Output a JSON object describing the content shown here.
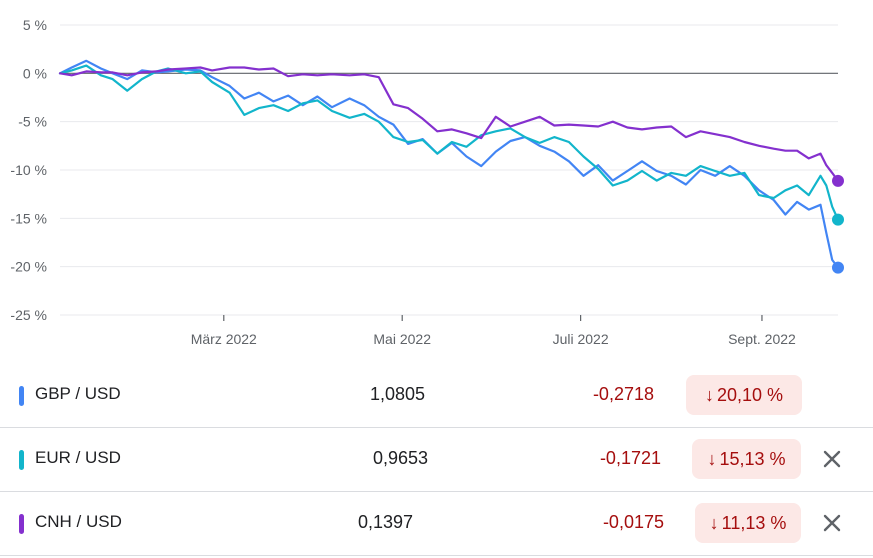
{
  "chart_data": {
    "type": "line",
    "ylim": [
      -25,
      5
    ],
    "y_ticks": [
      "5 %",
      "0 %",
      "-5 %",
      "-10 %",
      "-15 %",
      "-20 %",
      "-25 %"
    ],
    "y_tick_values": [
      5,
      0,
      -5,
      -10,
      -15,
      -20,
      -25
    ],
    "x_ticks": [
      "März 2022",
      "Mai 2022",
      "Juli 2022",
      "Sept. 2022"
    ],
    "x_tick_dates": [
      "2022-03-01",
      "2022-05-01",
      "2022-07-01",
      "2022-09-01"
    ],
    "x_range": [
      "2022-01-04",
      "2022-09-27"
    ],
    "grid": true,
    "legend": "none",
    "series": [
      {
        "name": "GBP / USD",
        "color": "#4285f4",
        "points": [
          [
            "2022-01-04",
            0.0
          ],
          [
            "2022-01-08",
            0.6
          ],
          [
            "2022-01-13",
            1.3
          ],
          [
            "2022-01-18",
            0.5
          ],
          [
            "2022-01-22",
            0.0
          ],
          [
            "2022-01-27",
            -0.6
          ],
          [
            "2022-02-01",
            0.3
          ],
          [
            "2022-02-06",
            0.1
          ],
          [
            "2022-02-10",
            0.2
          ],
          [
            "2022-02-16",
            0.4
          ],
          [
            "2022-02-21",
            0.3
          ],
          [
            "2022-02-25",
            -0.4
          ],
          [
            "2022-03-03",
            -1.3
          ],
          [
            "2022-03-08",
            -2.6
          ],
          [
            "2022-03-13",
            -2.0
          ],
          [
            "2022-03-18",
            -2.9
          ],
          [
            "2022-03-23",
            -2.3
          ],
          [
            "2022-03-28",
            -3.3
          ],
          [
            "2022-04-02",
            -2.4
          ],
          [
            "2022-04-07",
            -3.5
          ],
          [
            "2022-04-13",
            -2.6
          ],
          [
            "2022-04-18",
            -3.3
          ],
          [
            "2022-04-23",
            -4.5
          ],
          [
            "2022-04-28",
            -5.3
          ],
          [
            "2022-05-03",
            -7.3
          ],
          [
            "2022-05-08",
            -6.8
          ],
          [
            "2022-05-13",
            -8.3
          ],
          [
            "2022-05-18",
            -7.2
          ],
          [
            "2022-05-23",
            -8.6
          ],
          [
            "2022-05-28",
            -9.6
          ],
          [
            "2022-06-02",
            -8.1
          ],
          [
            "2022-06-07",
            -7.0
          ],
          [
            "2022-06-12",
            -6.6
          ],
          [
            "2022-06-17",
            -7.5
          ],
          [
            "2022-06-22",
            -8.1
          ],
          [
            "2022-06-27",
            -9.1
          ],
          [
            "2022-07-02",
            -10.6
          ],
          [
            "2022-07-07",
            -9.5
          ],
          [
            "2022-07-12",
            -11.1
          ],
          [
            "2022-07-17",
            -10.1
          ],
          [
            "2022-07-22",
            -9.1
          ],
          [
            "2022-07-27",
            -10.1
          ],
          [
            "2022-08-01",
            -10.6
          ],
          [
            "2022-08-06",
            -11.5
          ],
          [
            "2022-08-11",
            -10.0
          ],
          [
            "2022-08-16",
            -10.6
          ],
          [
            "2022-08-21",
            -9.6
          ],
          [
            "2022-08-26",
            -10.6
          ],
          [
            "2022-08-31",
            -12.1
          ],
          [
            "2022-09-05",
            -13.1
          ],
          [
            "2022-09-09",
            -14.6
          ],
          [
            "2022-09-13",
            -13.3
          ],
          [
            "2022-09-17",
            -14.1
          ],
          [
            "2022-09-21",
            -13.6
          ],
          [
            "2022-09-23",
            -16.5
          ],
          [
            "2022-09-25",
            -19.3
          ],
          [
            "2022-09-27",
            -20.1
          ]
        ]
      },
      {
        "name": "EUR / USD",
        "color": "#12b5cb",
        "points": [
          [
            "2022-01-04",
            0.0
          ],
          [
            "2022-01-08",
            0.3
          ],
          [
            "2022-01-13",
            0.8
          ],
          [
            "2022-01-18",
            -0.2
          ],
          [
            "2022-01-22",
            -0.6
          ],
          [
            "2022-01-27",
            -1.8
          ],
          [
            "2022-02-01",
            -0.6
          ],
          [
            "2022-02-06",
            0.2
          ],
          [
            "2022-02-10",
            0.5
          ],
          [
            "2022-02-16",
            0.0
          ],
          [
            "2022-02-21",
            0.2
          ],
          [
            "2022-02-25",
            -0.9
          ],
          [
            "2022-03-03",
            -2.0
          ],
          [
            "2022-03-08",
            -4.3
          ],
          [
            "2022-03-13",
            -3.6
          ],
          [
            "2022-03-18",
            -3.3
          ],
          [
            "2022-03-23",
            -3.9
          ],
          [
            "2022-03-28",
            -3.1
          ],
          [
            "2022-04-02",
            -2.8
          ],
          [
            "2022-04-07",
            -3.9
          ],
          [
            "2022-04-13",
            -4.6
          ],
          [
            "2022-04-18",
            -4.2
          ],
          [
            "2022-04-23",
            -5.0
          ],
          [
            "2022-04-28",
            -6.6
          ],
          [
            "2022-05-03",
            -7.1
          ],
          [
            "2022-05-08",
            -6.9
          ],
          [
            "2022-05-13",
            -8.3
          ],
          [
            "2022-05-18",
            -7.1
          ],
          [
            "2022-05-23",
            -7.6
          ],
          [
            "2022-05-28",
            -6.4
          ],
          [
            "2022-06-02",
            -6.0
          ],
          [
            "2022-06-07",
            -5.7
          ],
          [
            "2022-06-12",
            -6.6
          ],
          [
            "2022-06-17",
            -7.2
          ],
          [
            "2022-06-22",
            -6.6
          ],
          [
            "2022-06-27",
            -7.1
          ],
          [
            "2022-07-02",
            -8.6
          ],
          [
            "2022-07-07",
            -9.9
          ],
          [
            "2022-07-12",
            -11.6
          ],
          [
            "2022-07-17",
            -11.1
          ],
          [
            "2022-07-22",
            -10.1
          ],
          [
            "2022-07-27",
            -11.1
          ],
          [
            "2022-08-01",
            -10.3
          ],
          [
            "2022-08-06",
            -10.6
          ],
          [
            "2022-08-11",
            -9.6
          ],
          [
            "2022-08-16",
            -10.1
          ],
          [
            "2022-08-21",
            -10.6
          ],
          [
            "2022-08-26",
            -10.3
          ],
          [
            "2022-08-31",
            -12.6
          ],
          [
            "2022-09-05",
            -12.9
          ],
          [
            "2022-09-09",
            -12.1
          ],
          [
            "2022-09-13",
            -11.6
          ],
          [
            "2022-09-17",
            -12.6
          ],
          [
            "2022-09-21",
            -10.6
          ],
          [
            "2022-09-23",
            -11.6
          ],
          [
            "2022-09-25",
            -13.8
          ],
          [
            "2022-09-27",
            -15.13
          ]
        ]
      },
      {
        "name": "CNH / USD",
        "color": "#8430ce",
        "points": [
          [
            "2022-01-04",
            0.0
          ],
          [
            "2022-01-08",
            -0.2
          ],
          [
            "2022-01-13",
            0.2
          ],
          [
            "2022-01-18",
            0.1
          ],
          [
            "2022-01-22",
            0.1
          ],
          [
            "2022-01-27",
            -0.2
          ],
          [
            "2022-02-01",
            0.1
          ],
          [
            "2022-02-06",
            0.2
          ],
          [
            "2022-02-10",
            0.4
          ],
          [
            "2022-02-16",
            0.5
          ],
          [
            "2022-02-21",
            0.6
          ],
          [
            "2022-02-25",
            0.3
          ],
          [
            "2022-03-03",
            0.6
          ],
          [
            "2022-03-08",
            0.6
          ],
          [
            "2022-03-13",
            0.4
          ],
          [
            "2022-03-18",
            0.5
          ],
          [
            "2022-03-23",
            -0.3
          ],
          [
            "2022-03-28",
            -0.1
          ],
          [
            "2022-04-02",
            -0.2
          ],
          [
            "2022-04-07",
            -0.1
          ],
          [
            "2022-04-13",
            -0.2
          ],
          [
            "2022-04-18",
            -0.1
          ],
          [
            "2022-04-23",
            -0.4
          ],
          [
            "2022-04-28",
            -3.2
          ],
          [
            "2022-05-03",
            -3.6
          ],
          [
            "2022-05-08",
            -4.7
          ],
          [
            "2022-05-13",
            -6.0
          ],
          [
            "2022-05-18",
            -5.8
          ],
          [
            "2022-05-23",
            -6.2
          ],
          [
            "2022-05-28",
            -6.7
          ],
          [
            "2022-06-02",
            -4.5
          ],
          [
            "2022-06-07",
            -5.5
          ],
          [
            "2022-06-12",
            -5.0
          ],
          [
            "2022-06-17",
            -4.5
          ],
          [
            "2022-06-22",
            -5.4
          ],
          [
            "2022-06-27",
            -5.3
          ],
          [
            "2022-07-02",
            -5.4
          ],
          [
            "2022-07-07",
            -5.5
          ],
          [
            "2022-07-12",
            -5.0
          ],
          [
            "2022-07-17",
            -5.6
          ],
          [
            "2022-07-22",
            -5.8
          ],
          [
            "2022-07-27",
            -5.6
          ],
          [
            "2022-08-01",
            -5.5
          ],
          [
            "2022-08-06",
            -6.6
          ],
          [
            "2022-08-11",
            -6.0
          ],
          [
            "2022-08-16",
            -6.3
          ],
          [
            "2022-08-21",
            -6.6
          ],
          [
            "2022-08-26",
            -7.1
          ],
          [
            "2022-08-31",
            -7.5
          ],
          [
            "2022-09-05",
            -7.8
          ],
          [
            "2022-09-09",
            -8.0
          ],
          [
            "2022-09-13",
            -8.0
          ],
          [
            "2022-09-17",
            -8.8
          ],
          [
            "2022-09-21",
            -8.3
          ],
          [
            "2022-09-23",
            -9.5
          ],
          [
            "2022-09-25",
            -10.3
          ],
          [
            "2022-09-27",
            -11.13
          ]
        ]
      }
    ]
  },
  "table": {
    "rows": [
      {
        "pair": "GBP / USD",
        "color": "#4285f4",
        "price": "1,0805",
        "change": "-0,2718",
        "arrow": "↓",
        "pct": "20,10 %",
        "removable": false
      },
      {
        "pair": "EUR / USD",
        "color": "#12b5cb",
        "price": "0,9653",
        "change": "-0,1721",
        "arrow": "↓",
        "pct": "15,13 %",
        "removable": true
      },
      {
        "pair": "CNH / USD",
        "color": "#8430ce",
        "price": "0,1397",
        "change": "-0,0175",
        "arrow": "↓",
        "pct": "11,13 %",
        "removable": true
      }
    ],
    "close_icon": "close-icon"
  }
}
